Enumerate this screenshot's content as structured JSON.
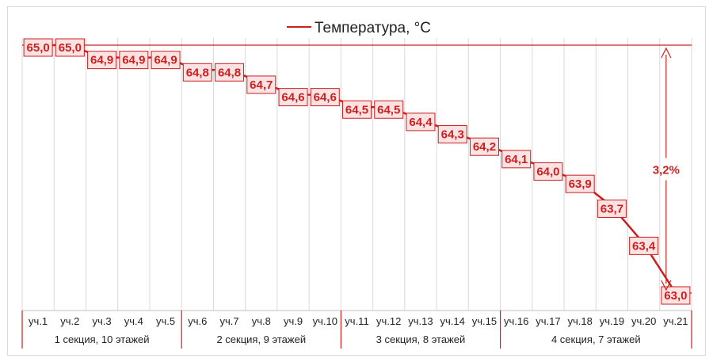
{
  "chart_data": {
    "type": "line",
    "categories": [
      "уч.1",
      "уч.2",
      "уч.3",
      "уч.4",
      "уч.5",
      "уч.6",
      "уч.7",
      "уч.8",
      "уч.9",
      "уч.10",
      "уч.11",
      "уч.12",
      "уч.13",
      "уч.14",
      "уч.15",
      "уч.16",
      "уч.17",
      "уч.18",
      "уч.19",
      "уч.20",
      "уч.21"
    ],
    "series": [
      {
        "name": "Температура, °C",
        "values": [
          65.0,
          65.0,
          64.9,
          64.9,
          64.9,
          64.8,
          64.8,
          64.7,
          64.6,
          64.6,
          64.5,
          64.5,
          64.4,
          64.3,
          64.2,
          64.1,
          64.0,
          63.9,
          63.7,
          63.4,
          63.0
        ],
        "labels": [
          "65,0",
          "65,0",
          "64,9",
          "64,9",
          "64,9",
          "64,8",
          "64,8",
          "64,7",
          "64,6",
          "64,6",
          "64,5",
          "64,5",
          "64,4",
          "64,3",
          "64,2",
          "64,1",
          "64,0",
          "63,9",
          "63,7",
          "63,4",
          "63,0"
        ],
        "color": "#cc1f1f"
      }
    ],
    "groups": [
      {
        "label": "1 секция, 10 этажей",
        "start": 0,
        "end": 4
      },
      {
        "label": "2 секция, 9 этажей",
        "start": 5,
        "end": 9
      },
      {
        "label": "3 секция, 8 этажей",
        "start": 10,
        "end": 14
      },
      {
        "label": "4 секция, 7 этажей",
        "start": 15,
        "end": 20
      }
    ],
    "ylim": [
      63.0,
      65.0
    ],
    "annotation": "3,2%",
    "legend_position": "top",
    "grid": "vertical",
    "xlabel": "",
    "ylabel": ""
  },
  "colors": {
    "series": "#cc1f1f",
    "label_fill": "#fbe3e3",
    "grid": "#d9d9d9"
  }
}
